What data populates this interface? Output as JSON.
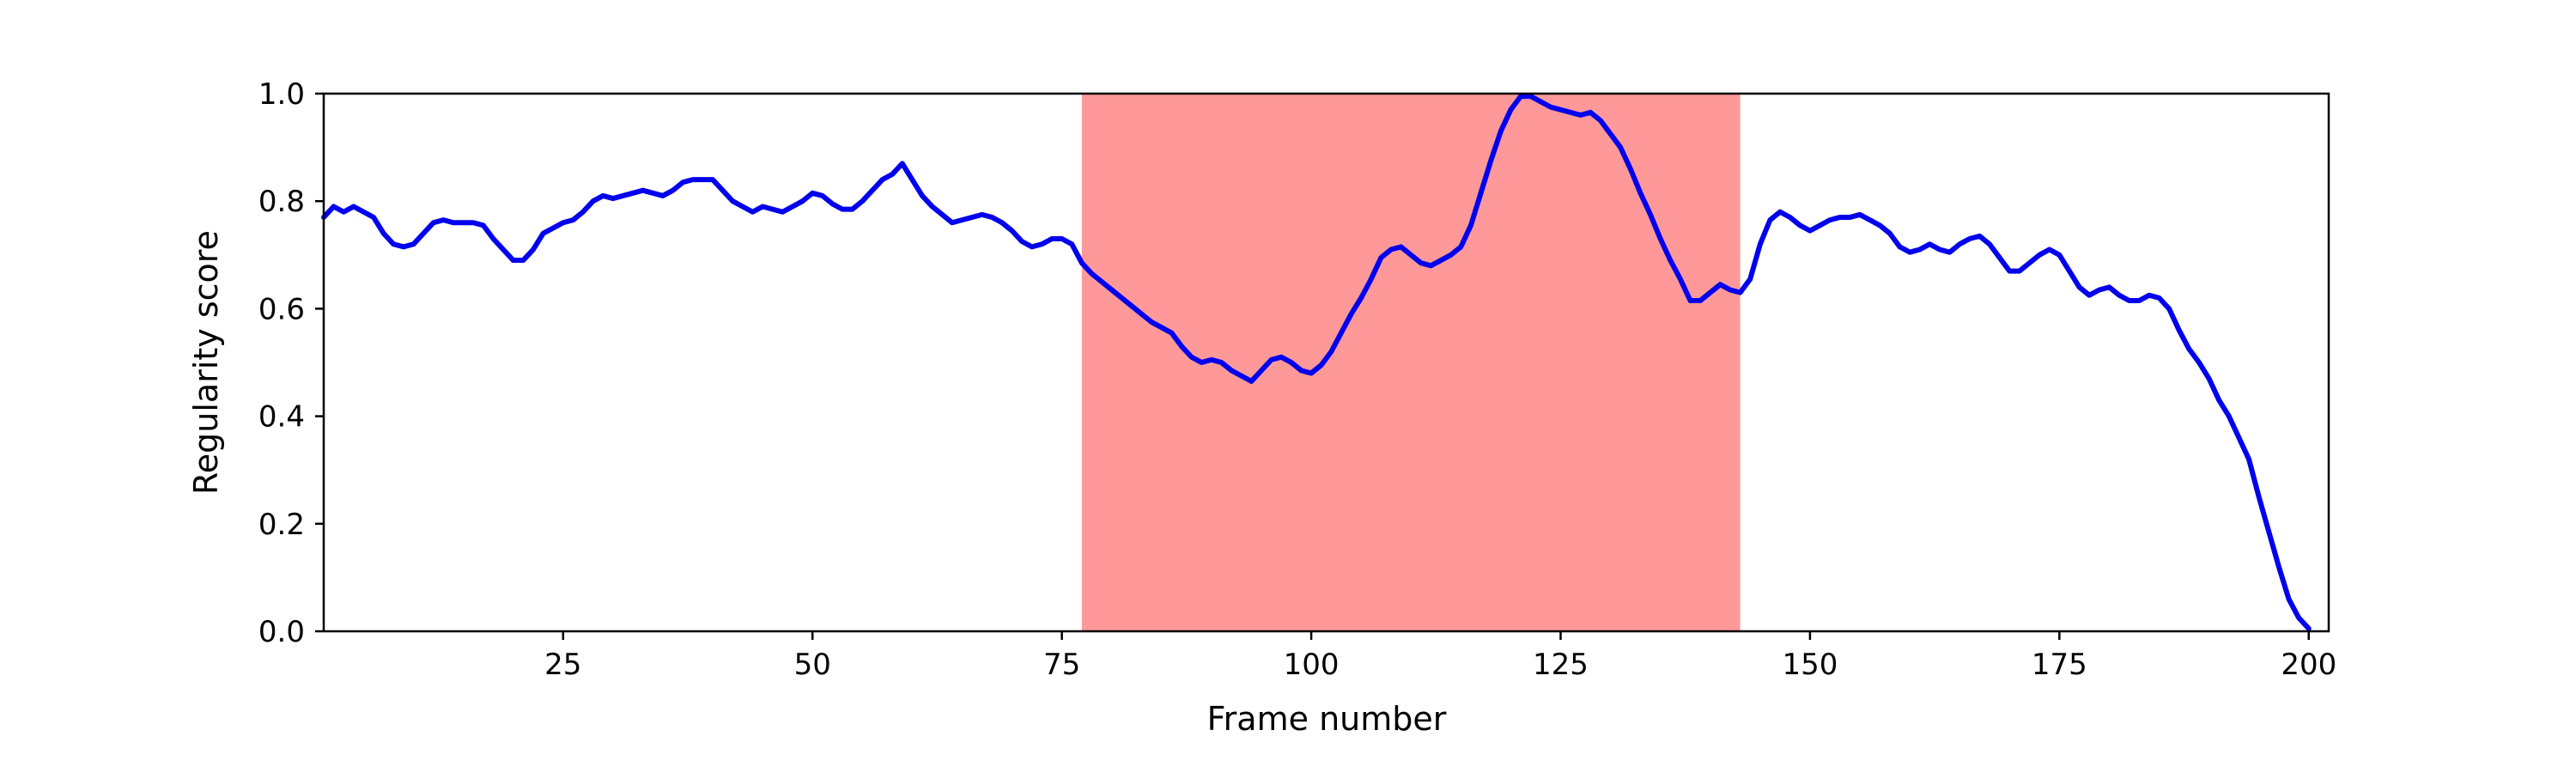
{
  "chart_data": {
    "type": "line",
    "title": "",
    "xlabel": "Frame number",
    "ylabel": "Regularity score",
    "xlim": [
      1,
      202
    ],
    "ylim": [
      0.0,
      1.0
    ],
    "x_ticks": [
      25,
      50,
      75,
      100,
      125,
      150,
      175,
      200
    ],
    "y_ticks": [
      0.0,
      0.2,
      0.4,
      0.6,
      0.8,
      1.0
    ],
    "x_tick_labels": [
      "25",
      "50",
      "75",
      "100",
      "125",
      "150",
      "175",
      "200"
    ],
    "y_tick_labels": [
      "0.0",
      "0.2",
      "0.4",
      "0.6",
      "0.8",
      "1.0"
    ],
    "grid": false,
    "highlight_span": {
      "x_start": 77,
      "x_end": 143,
      "color": "#ff9999"
    },
    "series": [
      {
        "color": "#0000ee",
        "points": [
          [
            1,
            0.77
          ],
          [
            2,
            0.79
          ],
          [
            3,
            0.78
          ],
          [
            4,
            0.79
          ],
          [
            5,
            0.78
          ],
          [
            6,
            0.77
          ],
          [
            7,
            0.74
          ],
          [
            8,
            0.72
          ],
          [
            9,
            0.715
          ],
          [
            10,
            0.72
          ],
          [
            11,
            0.74
          ],
          [
            12,
            0.76
          ],
          [
            13,
            0.765
          ],
          [
            14,
            0.76
          ],
          [
            15,
            0.76
          ],
          [
            16,
            0.76
          ],
          [
            17,
            0.755
          ],
          [
            18,
            0.73
          ],
          [
            19,
            0.71
          ],
          [
            20,
            0.69
          ],
          [
            21,
            0.69
          ],
          [
            22,
            0.71
          ],
          [
            23,
            0.74
          ],
          [
            24,
            0.75
          ],
          [
            25,
            0.76
          ],
          [
            26,
            0.765
          ],
          [
            27,
            0.78
          ],
          [
            28,
            0.8
          ],
          [
            29,
            0.81
          ],
          [
            30,
            0.805
          ],
          [
            31,
            0.81
          ],
          [
            32,
            0.815
          ],
          [
            33,
            0.82
          ],
          [
            34,
            0.815
          ],
          [
            35,
            0.81
          ],
          [
            36,
            0.82
          ],
          [
            37,
            0.835
          ],
          [
            38,
            0.84
          ],
          [
            39,
            0.84
          ],
          [
            40,
            0.84
          ],
          [
            41,
            0.82
          ],
          [
            42,
            0.8
          ],
          [
            43,
            0.79
          ],
          [
            44,
            0.78
          ],
          [
            45,
            0.79
          ],
          [
            46,
            0.785
          ],
          [
            47,
            0.78
          ],
          [
            48,
            0.79
          ],
          [
            49,
            0.8
          ],
          [
            50,
            0.815
          ],
          [
            51,
            0.81
          ],
          [
            52,
            0.795
          ],
          [
            53,
            0.785
          ],
          [
            54,
            0.785
          ],
          [
            55,
            0.8
          ],
          [
            56,
            0.82
          ],
          [
            57,
            0.84
          ],
          [
            58,
            0.85
          ],
          [
            59,
            0.87
          ],
          [
            60,
            0.84
          ],
          [
            61,
            0.81
          ],
          [
            62,
            0.79
          ],
          [
            63,
            0.775
          ],
          [
            64,
            0.76
          ],
          [
            65,
            0.765
          ],
          [
            66,
            0.77
          ],
          [
            67,
            0.775
          ],
          [
            68,
            0.77
          ],
          [
            69,
            0.76
          ],
          [
            70,
            0.745
          ],
          [
            71,
            0.725
          ],
          [
            72,
            0.715
          ],
          [
            73,
            0.72
          ],
          [
            74,
            0.73
          ],
          [
            75,
            0.73
          ],
          [
            76,
            0.72
          ],
          [
            77,
            0.685
          ],
          [
            78,
            0.665
          ],
          [
            79,
            0.65
          ],
          [
            80,
            0.635
          ],
          [
            81,
            0.62
          ],
          [
            82,
            0.605
          ],
          [
            83,
            0.59
          ],
          [
            84,
            0.575
          ],
          [
            85,
            0.565
          ],
          [
            86,
            0.555
          ],
          [
            87,
            0.53
          ],
          [
            88,
            0.51
          ],
          [
            89,
            0.5
          ],
          [
            90,
            0.505
          ],
          [
            91,
            0.5
          ],
          [
            92,
            0.485
          ],
          [
            93,
            0.475
          ],
          [
            94,
            0.465
          ],
          [
            95,
            0.485
          ],
          [
            96,
            0.505
          ],
          [
            97,
            0.51
          ],
          [
            98,
            0.5
          ],
          [
            99,
            0.485
          ],
          [
            100,
            0.48
          ],
          [
            101,
            0.495
          ],
          [
            102,
            0.52
          ],
          [
            103,
            0.555
          ],
          [
            104,
            0.59
          ],
          [
            105,
            0.62
          ],
          [
            106,
            0.655
          ],
          [
            107,
            0.695
          ],
          [
            108,
            0.71
          ],
          [
            109,
            0.715
          ],
          [
            110,
            0.7
          ],
          [
            111,
            0.685
          ],
          [
            112,
            0.68
          ],
          [
            113,
            0.69
          ],
          [
            114,
            0.7
          ],
          [
            115,
            0.715
          ],
          [
            116,
            0.755
          ],
          [
            117,
            0.815
          ],
          [
            118,
            0.875
          ],
          [
            119,
            0.93
          ],
          [
            120,
            0.97
          ],
          [
            121,
            0.995
          ],
          [
            122,
            0.995
          ],
          [
            123,
            0.985
          ],
          [
            124,
            0.975
          ],
          [
            125,
            0.97
          ],
          [
            126,
            0.965
          ],
          [
            127,
            0.96
          ],
          [
            128,
            0.965
          ],
          [
            129,
            0.95
          ],
          [
            130,
            0.925
          ],
          [
            131,
            0.9
          ],
          [
            132,
            0.86
          ],
          [
            133,
            0.815
          ],
          [
            134,
            0.775
          ],
          [
            135,
            0.73
          ],
          [
            136,
            0.69
          ],
          [
            137,
            0.655
          ],
          [
            138,
            0.615
          ],
          [
            139,
            0.615
          ],
          [
            140,
            0.63
          ],
          [
            141,
            0.645
          ],
          [
            142,
            0.635
          ],
          [
            143,
            0.63
          ],
          [
            144,
            0.655
          ],
          [
            145,
            0.72
          ],
          [
            146,
            0.765
          ],
          [
            147,
            0.78
          ],
          [
            148,
            0.77
          ],
          [
            149,
            0.755
          ],
          [
            150,
            0.745
          ],
          [
            151,
            0.755
          ],
          [
            152,
            0.765
          ],
          [
            153,
            0.77
          ],
          [
            154,
            0.77
          ],
          [
            155,
            0.775
          ],
          [
            156,
            0.765
          ],
          [
            157,
            0.755
          ],
          [
            158,
            0.74
          ],
          [
            159,
            0.715
          ],
          [
            160,
            0.705
          ],
          [
            161,
            0.71
          ],
          [
            162,
            0.72
          ],
          [
            163,
            0.71
          ],
          [
            164,
            0.705
          ],
          [
            165,
            0.72
          ],
          [
            166,
            0.73
          ],
          [
            167,
            0.735
          ],
          [
            168,
            0.72
          ],
          [
            169,
            0.695
          ],
          [
            170,
            0.67
          ],
          [
            171,
            0.67
          ],
          [
            172,
            0.685
          ],
          [
            173,
            0.7
          ],
          [
            174,
            0.71
          ],
          [
            175,
            0.7
          ],
          [
            176,
            0.67
          ],
          [
            177,
            0.64
          ],
          [
            178,
            0.625
          ],
          [
            179,
            0.635
          ],
          [
            180,
            0.64
          ],
          [
            181,
            0.625
          ],
          [
            182,
            0.615
          ],
          [
            183,
            0.615
          ],
          [
            184,
            0.625
          ],
          [
            185,
            0.62
          ],
          [
            186,
            0.6
          ],
          [
            187,
            0.56
          ],
          [
            188,
            0.525
          ],
          [
            189,
            0.5
          ],
          [
            190,
            0.47
          ],
          [
            191,
            0.43
          ],
          [
            192,
            0.4
          ],
          [
            193,
            0.36
          ],
          [
            194,
            0.32
          ],
          [
            195,
            0.25
          ],
          [
            196,
            0.185
          ],
          [
            197,
            0.12
          ],
          [
            198,
            0.06
          ],
          [
            199,
            0.025
          ],
          [
            200,
            0.005
          ]
        ]
      }
    ]
  }
}
